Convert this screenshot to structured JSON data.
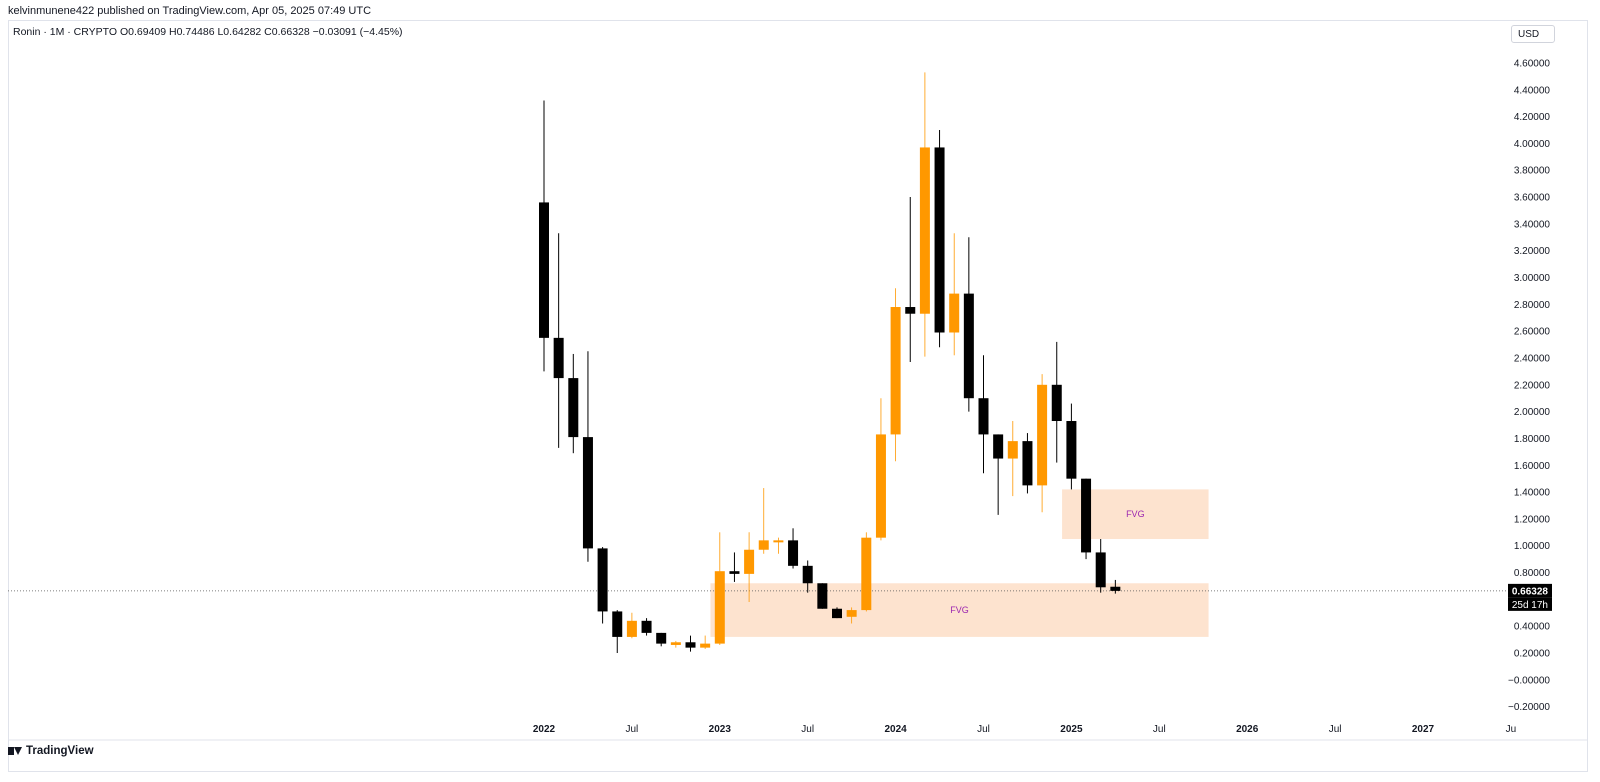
{
  "header": {
    "publish_text": "kelvinmunene422 published on TradingView.com, Apr 05, 2025 07:49 UTC",
    "legend_text": "Ronin · 1M · CRYPTO  O0.69409  H0.74486  L0.64282  C0.66328  −0.03091 (−4.45%)",
    "currency": "USD"
  },
  "footer": {
    "brand": "TradingView"
  },
  "colors": {
    "up": "#ff9800",
    "down": "#000000",
    "fvg": "#fde3cf",
    "fvg_label": "#9c27b0",
    "axis_text": "#131722"
  },
  "chart_data": {
    "type": "candlestick",
    "y_ticks": [
      "4.60000",
      "4.40000",
      "4.20000",
      "4.00000",
      "3.80000",
      "3.60000",
      "3.40000",
      "3.20000",
      "3.00000",
      "2.80000",
      "2.60000",
      "2.40000",
      "2.20000",
      "2.00000",
      "1.80000",
      "1.60000",
      "1.40000",
      "1.20000",
      "1.00000",
      "0.80000",
      "0.40000",
      "0.20000",
      "−0.00000",
      "−0.20000"
    ],
    "x_labels": [
      {
        "text": "2022",
        "date": "2022-01",
        "bold": true
      },
      {
        "text": "Jul",
        "date": "2022-07",
        "bold": false
      },
      {
        "text": "2023",
        "date": "2023-01",
        "bold": true
      },
      {
        "text": "Jul",
        "date": "2023-07",
        "bold": false
      },
      {
        "text": "2024",
        "date": "2024-01",
        "bold": true
      },
      {
        "text": "Jul",
        "date": "2024-07",
        "bold": false
      },
      {
        "text": "2025",
        "date": "2025-01",
        "bold": true
      },
      {
        "text": "Jul",
        "date": "2025-07",
        "bold": false
      },
      {
        "text": "2026",
        "date": "2026-01",
        "bold": true
      },
      {
        "text": "Jul",
        "date": "2026-07",
        "bold": false
      },
      {
        "text": "2027",
        "date": "2027-01",
        "bold": true
      },
      {
        "text": "Ju",
        "date": "2027-07",
        "bold": false
      }
    ],
    "candles": [
      {
        "date": "2022-01",
        "o": 3.56,
        "h": 4.32,
        "l": 2.3,
        "c": 2.55
      },
      {
        "date": "2022-02",
        "o": 2.55,
        "h": 3.33,
        "l": 1.73,
        "c": 2.25
      },
      {
        "date": "2022-03",
        "o": 2.25,
        "h": 2.43,
        "l": 1.69,
        "c": 1.81
      },
      {
        "date": "2022-04",
        "o": 1.81,
        "h": 2.45,
        "l": 0.88,
        "c": 0.98
      },
      {
        "date": "2022-05",
        "o": 0.98,
        "h": 0.99,
        "l": 0.42,
        "c": 0.51
      },
      {
        "date": "2022-06",
        "o": 0.51,
        "h": 0.52,
        "l": 0.2,
        "c": 0.32
      },
      {
        "date": "2022-07",
        "o": 0.32,
        "h": 0.5,
        "l": 0.31,
        "c": 0.44
      },
      {
        "date": "2022-08",
        "o": 0.44,
        "h": 0.46,
        "l": 0.33,
        "c": 0.35
      },
      {
        "date": "2022-09",
        "o": 0.35,
        "h": 0.35,
        "l": 0.25,
        "c": 0.27
      },
      {
        "date": "2022-10",
        "o": 0.26,
        "h": 0.29,
        "l": 0.24,
        "c": 0.28
      },
      {
        "date": "2022-11",
        "o": 0.28,
        "h": 0.33,
        "l": 0.21,
        "c": 0.24
      },
      {
        "date": "2022-12",
        "o": 0.24,
        "h": 0.33,
        "l": 0.23,
        "c": 0.27
      },
      {
        "date": "2023-01",
        "o": 0.27,
        "h": 1.1,
        "l": 0.26,
        "c": 0.81
      },
      {
        "date": "2023-02",
        "o": 0.81,
        "h": 0.95,
        "l": 0.73,
        "c": 0.79
      },
      {
        "date": "2023-03",
        "o": 0.79,
        "h": 1.1,
        "l": 0.58,
        "c": 0.97
      },
      {
        "date": "2023-04",
        "o": 0.97,
        "h": 1.43,
        "l": 0.94,
        "c": 1.04
      },
      {
        "date": "2023-05",
        "o": 1.04,
        "h": 1.06,
        "l": 0.94,
        "c": 1.04
      },
      {
        "date": "2023-06",
        "o": 1.04,
        "h": 1.13,
        "l": 0.83,
        "c": 0.85
      },
      {
        "date": "2023-07",
        "o": 0.85,
        "h": 0.89,
        "l": 0.65,
        "c": 0.72
      },
      {
        "date": "2023-08",
        "o": 0.72,
        "h": 0.72,
        "l": 0.53,
        "c": 0.53
      },
      {
        "date": "2023-09",
        "o": 0.53,
        "h": 0.54,
        "l": 0.46,
        "c": 0.46
      },
      {
        "date": "2023-10",
        "o": 0.47,
        "h": 0.54,
        "l": 0.42,
        "c": 0.52
      },
      {
        "date": "2023-11",
        "o": 0.52,
        "h": 1.1,
        "l": 0.51,
        "c": 1.06
      },
      {
        "date": "2023-12",
        "o": 1.06,
        "h": 2.1,
        "l": 1.04,
        "c": 1.83
      },
      {
        "date": "2024-01",
        "o": 1.83,
        "h": 2.92,
        "l": 1.63,
        "c": 2.78
      },
      {
        "date": "2024-02",
        "o": 2.78,
        "h": 3.6,
        "l": 2.37,
        "c": 2.73
      },
      {
        "date": "2024-03",
        "o": 2.73,
        "h": 4.53,
        "l": 2.41,
        "c": 3.97
      },
      {
        "date": "2024-04",
        "o": 3.97,
        "h": 4.1,
        "l": 2.48,
        "c": 2.59
      },
      {
        "date": "2024-05",
        "o": 2.59,
        "h": 3.33,
        "l": 2.42,
        "c": 2.88
      },
      {
        "date": "2024-06",
        "o": 2.88,
        "h": 3.3,
        "l": 2.0,
        "c": 2.1
      },
      {
        "date": "2024-07",
        "o": 2.1,
        "h": 2.42,
        "l": 1.54,
        "c": 1.83
      },
      {
        "date": "2024-08",
        "o": 1.83,
        "h": 1.83,
        "l": 1.23,
        "c": 1.65
      },
      {
        "date": "2024-09",
        "o": 1.65,
        "h": 1.93,
        "l": 1.37,
        "c": 1.78
      },
      {
        "date": "2024-10",
        "o": 1.78,
        "h": 1.84,
        "l": 1.39,
        "c": 1.45
      },
      {
        "date": "2024-11",
        "o": 1.45,
        "h": 2.28,
        "l": 1.25,
        "c": 2.2
      },
      {
        "date": "2024-12",
        "o": 2.2,
        "h": 2.52,
        "l": 1.62,
        "c": 1.93
      },
      {
        "date": "2025-01",
        "o": 1.93,
        "h": 2.06,
        "l": 1.42,
        "c": 1.5
      },
      {
        "date": "2025-02",
        "o": 1.5,
        "h": 1.5,
        "l": 0.9,
        "c": 0.95
      },
      {
        "date": "2025-03",
        "o": 0.95,
        "h": 1.05,
        "l": 0.65,
        "c": 0.69
      },
      {
        "date": "2025-04",
        "o": 0.69409,
        "h": 0.74486,
        "l": 0.64282,
        "c": 0.66328
      }
    ],
    "fvg_zones": [
      {
        "label": "FVG",
        "x_start": "2023-01",
        "x_end": "2025-10",
        "y_low": 0.32,
        "y_high": 0.72
      },
      {
        "label": "FVG",
        "x_start": "2025-01",
        "x_end": "2025-10",
        "y_low": 1.05,
        "y_high": 1.42
      }
    ],
    "last_price": {
      "value": 0.66328,
      "label": "0.66328",
      "countdown": "25d 17h"
    }
  }
}
